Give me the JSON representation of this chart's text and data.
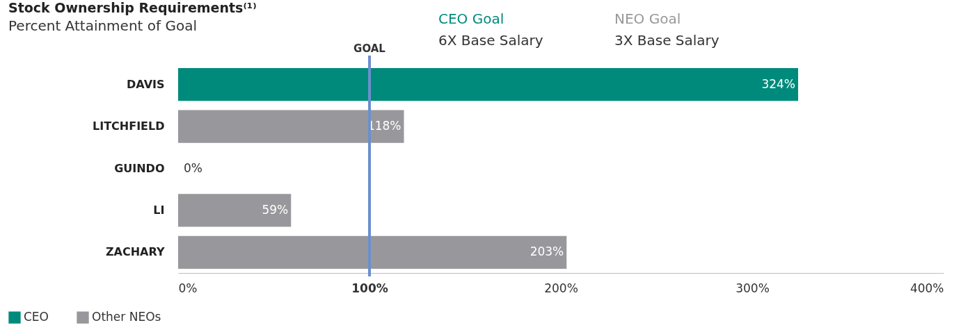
{
  "chart_data": {
    "type": "bar",
    "orientation": "horizontal",
    "title": "Stock Ownership Requirements⁽¹⁾",
    "subtitle": "Percent Attainment of Goal",
    "categories": [
      "DAVIS",
      "LITCHFIELD",
      "GUINDO",
      "LI",
      "ZACHARY"
    ],
    "series": [
      {
        "name": "CEO",
        "color": "#008a7c",
        "values": [
          324,
          null,
          null,
          null,
          null
        ],
        "value_labels": [
          "324%",
          null,
          null,
          null,
          null
        ]
      },
      {
        "name": "Other NEOs",
        "color": "#98989c",
        "values": [
          null,
          118,
          0,
          59,
          203
        ],
        "value_labels": [
          null,
          "118%",
          "0%",
          "59%",
          "203%"
        ]
      }
    ],
    "xlim": [
      0,
      400
    ],
    "xticks": [
      {
        "value": 0,
        "label": "0%"
      },
      {
        "value": 100,
        "label": "100%"
      },
      {
        "value": 200,
        "label": "200%"
      },
      {
        "value": 300,
        "label": "300%"
      },
      {
        "value": 400,
        "label": "400%"
      }
    ],
    "ref_lines": [
      {
        "axis": "x",
        "value": 100,
        "label": "GOAL",
        "color": "#6b8fce"
      }
    ],
    "annotations": [
      "CEO Goal",
      "6X Base Salary",
      "NEO Goal",
      "3X Base Salary"
    ],
    "legend": "bottom left",
    "grid": false
  }
}
